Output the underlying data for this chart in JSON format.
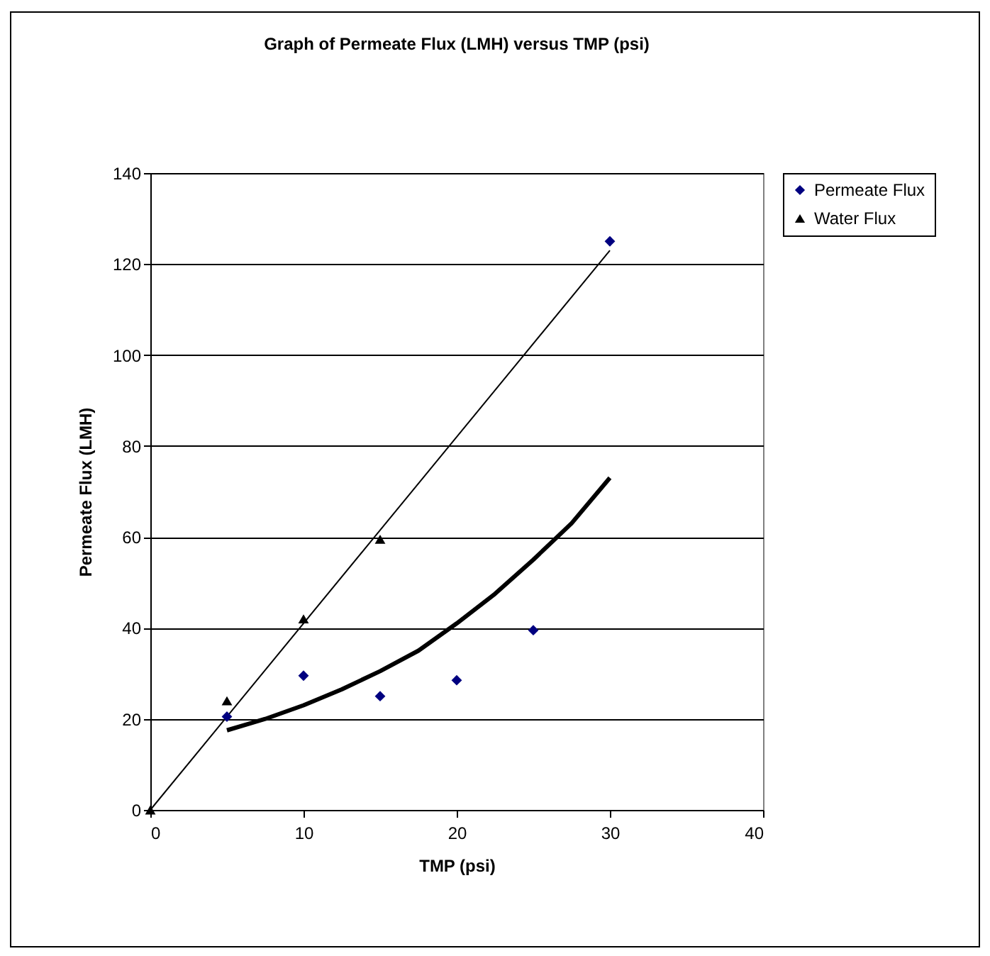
{
  "chart_data": {
    "type": "scatter",
    "title": "Graph of Permeate Flux (LMH) versus TMP (psi)",
    "xlabel": "TMP (psi)",
    "ylabel": "Permeate Flux (LMH)",
    "xlim": [
      0,
      40
    ],
    "xticks": [
      0,
      10,
      20,
      30,
      40
    ],
    "ylim": [
      0,
      140
    ],
    "yticks": [
      0,
      20,
      40,
      60,
      80,
      100,
      120,
      140
    ],
    "grid": "y",
    "legend": "right",
    "series": [
      {
        "name": "Permeate Flux",
        "marker": "diamond",
        "color": "#000080",
        "x": [
          5,
          10,
          15,
          20,
          25,
          30
        ],
        "values": [
          20.5,
          29.5,
          25,
          28.5,
          39.5,
          125
        ]
      },
      {
        "name": "Water Flux",
        "marker": "triangle",
        "color": "#000000",
        "x": [
          0,
          5,
          10,
          15
        ],
        "values": [
          0,
          24,
          42,
          59.5
        ]
      },
      {
        "type": "line",
        "marker": "none",
        "line_style": "solid",
        "color": "#000000",
        "x": [
          0,
          30
        ],
        "values": [
          0,
          123
        ]
      },
      {
        "type": "line",
        "marker": "none",
        "line_style": "solid",
        "color": "#000000",
        "x": [
          5,
          7.5,
          10,
          12.5,
          15,
          17.5,
          20,
          22.5,
          25,
          27.5,
          30
        ],
        "values": [
          17.5,
          20,
          23,
          26.5,
          30.5,
          35,
          41,
          47.5,
          55,
          63,
          73
        ]
      }
    ]
  }
}
